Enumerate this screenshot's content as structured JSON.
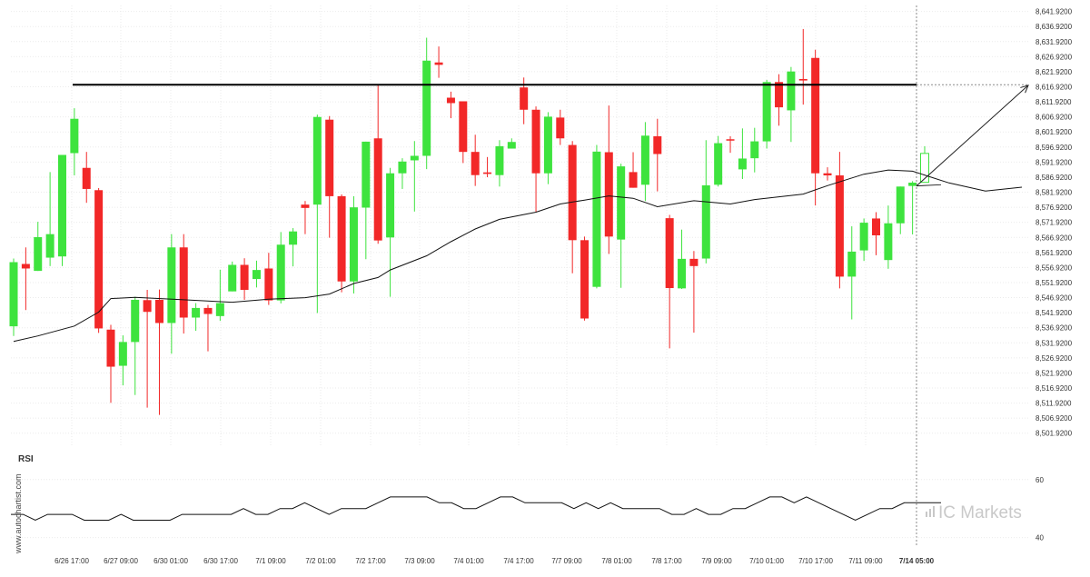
{
  "chart_data": {
    "type": "candlestick",
    "watermark": "www.autochartist.com",
    "brand": "IC Markets",
    "ylim": [
      8497.92,
      8643.92
    ],
    "y_ticks": [
      "8,641.9200",
      "8,636.9200",
      "8,631.9200",
      "8,626.9200",
      "8,621.9200",
      "8,616.9200",
      "8,611.9200",
      "8,606.9200",
      "8,601.9200",
      "8,596.9200",
      "8,591.9200",
      "8,586.9200",
      "8,581.9200",
      "8,576.9200",
      "8,571.9200",
      "8,566.9200",
      "8,561.9200",
      "8,556.9200",
      "8,551.9200",
      "8,546.9200",
      "8,541.9200",
      "8,536.9200",
      "8,531.9200",
      "8,526.9200",
      "8,521.9200",
      "8,516.9200",
      "8,511.9200",
      "8,506.9200",
      "8,501.9200"
    ],
    "x_labels": [
      "6/26 17:00",
      "6/27 09:00",
      "6/30 01:00",
      "6/30 17:00",
      "7/1 09:00",
      "7/2 01:00",
      "7/2 17:00",
      "7/3 09:00",
      "7/4 01:00",
      "7/4 17:00",
      "7/7 09:00",
      "7/8 01:00",
      "7/8 17:00",
      "7/9 09:00",
      "7/10 01:00",
      "7/10 17:00",
      "7/11 09:00",
      "7/14 05:00"
    ],
    "x_label_bold_index": 17,
    "resistance_level": 8617.6,
    "projection_target": 8617.4,
    "up_color": "#3ee33e",
    "down_color": "#f22828",
    "candles": [
      [
        8537.4,
        8558.7,
        8534.2,
        8559.9
      ],
      [
        8558.1,
        8556.6,
        8542.8,
        8563.6
      ],
      [
        8555.8,
        8567.0,
        8555.8,
        8572.1
      ],
      [
        8560.2,
        8568.0,
        8557.4,
        8588.6
      ],
      [
        8560.6,
        8594.3,
        8557.4,
        8593.5
      ],
      [
        8594.9,
        8606.3,
        8587.5,
        8609.8
      ],
      [
        8590.0,
        8583.0,
        8578.4,
        8595.3
      ],
      [
        8582.6,
        8536.7,
        8535.2,
        8583.3
      ],
      [
        8536.3,
        8524.0,
        8512.0,
        8537.9
      ],
      [
        8524.3,
        8532.2,
        8517.8,
        8534.4
      ],
      [
        8532.2,
        8546.2,
        8514.6,
        8547.2
      ],
      [
        8546.1,
        8542.2,
        8510.4,
        8549.5
      ],
      [
        8546.2,
        8538.5,
        8508.0,
        8549.6
      ],
      [
        8538.5,
        8563.6,
        8528.3,
        8568.0
      ],
      [
        8563.6,
        8540.3,
        8535.0,
        8568.0
      ],
      [
        8540.3,
        8543.5,
        8535.9,
        8545.1
      ],
      [
        8543.5,
        8541.5,
        8529.1,
        8544.5
      ],
      [
        8540.8,
        8545.1,
        8539.2,
        8556.2
      ],
      [
        8549.0,
        8557.8,
        8549.0,
        8558.9
      ],
      [
        8557.8,
        8549.5,
        8546.2,
        8560.0
      ],
      [
        8553.1,
        8556.1,
        8550.3,
        8559.2
      ],
      [
        8556.6,
        8546.0,
        8544.5,
        8561.8
      ],
      [
        8546.0,
        8564.5,
        8545.0,
        8568.7
      ],
      [
        8564.5,
        8568.9,
        8557.3,
        8570.0
      ],
      [
        8577.8,
        8576.7,
        8568.0,
        8579.0
      ],
      [
        8577.8,
        8606.9,
        8541.8,
        8607.7
      ],
      [
        8606.0,
        8580.6,
        8566.8,
        8607.2
      ],
      [
        8580.6,
        8552.3,
        8548.7,
        8581.2
      ],
      [
        8552.3,
        8576.9,
        8548.3,
        8580.6
      ],
      [
        8576.8,
        8598.7,
        8559.7,
        8598.7
      ],
      [
        8599.8,
        8565.9,
        8564.8,
        8617.6
      ],
      [
        8566.9,
        8588.2,
        8547.2,
        8590.0
      ],
      [
        8588.2,
        8592.1,
        8583.0,
        8593.2
      ],
      [
        8592.5,
        8594.0,
        8575.5,
        8598.9
      ],
      [
        8594.0,
        8625.6,
        8589.6,
        8633.2
      ],
      [
        8625.0,
        8624.2,
        8619.9,
        8630.3
      ],
      [
        8613.3,
        8611.5,
        8606.5,
        8615.3
      ],
      [
        8612.1,
        8595.3,
        8591.6,
        8612.1
      ],
      [
        8595.3,
        8587.6,
        8584.0,
        8601.0
      ],
      [
        8588.5,
        8588.0,
        8586.9,
        8593.6
      ],
      [
        8587.6,
        8597.2,
        8583.8,
        8599.2
      ],
      [
        8596.4,
        8598.6,
        8596.4,
        8599.8
      ],
      [
        8616.7,
        8609.3,
        8604.5,
        8620.0
      ],
      [
        8609.3,
        8588.2,
        8575.4,
        8610.4
      ],
      [
        8588.2,
        8607.0,
        8584.6,
        8608.5
      ],
      [
        8606.7,
        8599.8,
        8597.6,
        8609.3
      ],
      [
        8597.6,
        8566.0,
        8555.0,
        8598.9
      ],
      [
        8566.0,
        8540.0,
        8539.3,
        8567.2
      ],
      [
        8550.5,
        8595.4,
        8550.0,
        8597.6
      ],
      [
        8595.2,
        8567.2,
        8561.4,
        8610.7
      ],
      [
        8566.2,
        8590.5,
        8550.2,
        8591.4
      ],
      [
        8588.6,
        8583.4,
        8583.4,
        8595.2
      ],
      [
        8584.4,
        8600.7,
        8579.0,
        8605.2
      ],
      [
        8600.5,
        8594.6,
        8582.2,
        8606.3
      ],
      [
        8573.3,
        8550.1,
        8530.1,
        8574.4
      ],
      [
        8550.0,
        8559.8,
        8549.8,
        8569.5
      ],
      [
        8559.8,
        8557.4,
        8535.3,
        8562.4
      ],
      [
        8559.9,
        8584.2,
        8558.3,
        8599.2
      ],
      [
        8584.4,
        8598.2,
        8583.8,
        8600.6
      ],
      [
        8599.5,
        8599.2,
        8595.0,
        8600.5
      ],
      [
        8589.5,
        8593.1,
        8586.3,
        8603.1
      ],
      [
        8593.2,
        8598.8,
        8588.5,
        8603.3
      ],
      [
        8598.8,
        8618.5,
        8596.4,
        8619.2
      ],
      [
        8618.5,
        8610.1,
        8604.0,
        8621.1
      ],
      [
        8609.1,
        8622.0,
        8598.6,
        8623.5
      ],
      [
        8619.5,
        8619.0,
        8611.0,
        8636.1
      ],
      [
        8626.5,
        8588.2,
        8577.5,
        8629.2
      ],
      [
        8588.2,
        8587.5,
        8585.8,
        8590.2
      ],
      [
        8587.5,
        8553.9,
        8550.0,
        8595.3
      ],
      [
        8553.9,
        8562.2,
        8539.7,
        8570.6
      ],
      [
        8562.6,
        8571.8,
        8559.1,
        8573.2
      ],
      [
        8573.2,
        8567.6,
        8561.0,
        8575.3
      ],
      [
        8559.4,
        8571.6,
        8556.5,
        8577.5
      ],
      [
        8571.6,
        8583.8,
        8568.0,
        8583.8
      ],
      [
        8584.0,
        8585.1,
        8567.9,
        8585.6
      ],
      [
        8585.2,
        8594.8,
        8585.2,
        8597.2
      ]
    ],
    "ma_line": [
      [
        0,
        8532.4
      ],
      [
        2,
        8534.2
      ],
      [
        5,
        8537.5
      ],
      [
        7,
        8542.1
      ],
      [
        8,
        8546.6
      ],
      [
        10,
        8547.0
      ],
      [
        14,
        8546.2
      ],
      [
        18,
        8545.4
      ],
      [
        21,
        8546.4
      ],
      [
        24,
        8546.9
      ],
      [
        26,
        8548.1
      ],
      [
        28,
        8551.6
      ],
      [
        30,
        8553.6
      ],
      [
        31,
        8556.1
      ],
      [
        34,
        8560.8
      ],
      [
        36,
        8565.5
      ],
      [
        38,
        8569.7
      ],
      [
        40,
        8572.9
      ],
      [
        43,
        8575.3
      ],
      [
        45,
        8578.0
      ],
      [
        47,
        8579.3
      ],
      [
        49,
        8580.7
      ],
      [
        51,
        8579.9
      ],
      [
        53,
        8577.1
      ],
      [
        56,
        8579.1
      ],
      [
        59,
        8578.0
      ],
      [
        61,
        8579.5
      ],
      [
        63,
        8580.4
      ],
      [
        65,
        8581.3
      ],
      [
        67,
        8584.1
      ],
      [
        70,
        8587.9
      ],
      [
        72,
        8589.3
      ],
      [
        74,
        8588.9
      ],
      [
        77,
        8585.0
      ],
      [
        80,
        8582.3
      ],
      [
        83,
        8583.6
      ]
    ],
    "rsi": {
      "label": "RSI",
      "ylim": [
        38,
        64
      ],
      "y_ticks": [
        "60",
        "40"
      ],
      "values": [
        48,
        48,
        46,
        48,
        48,
        48,
        46,
        46,
        46,
        48,
        46,
        46,
        46,
        46,
        48,
        48,
        48,
        48,
        48,
        50,
        48,
        48,
        50,
        50,
        52,
        50,
        48,
        50,
        50,
        50,
        52,
        54,
        54,
        54,
        54,
        52,
        52,
        50,
        50,
        52,
        54,
        54,
        52,
        52,
        52,
        52,
        50,
        52,
        50,
        52,
        50,
        50,
        50,
        50,
        48,
        48,
        50,
        48,
        48,
        50,
        50,
        52,
        54,
        54,
        52,
        54,
        52,
        50,
        48,
        46,
        48,
        50,
        50,
        52,
        52,
        52,
        52
      ]
    }
  }
}
